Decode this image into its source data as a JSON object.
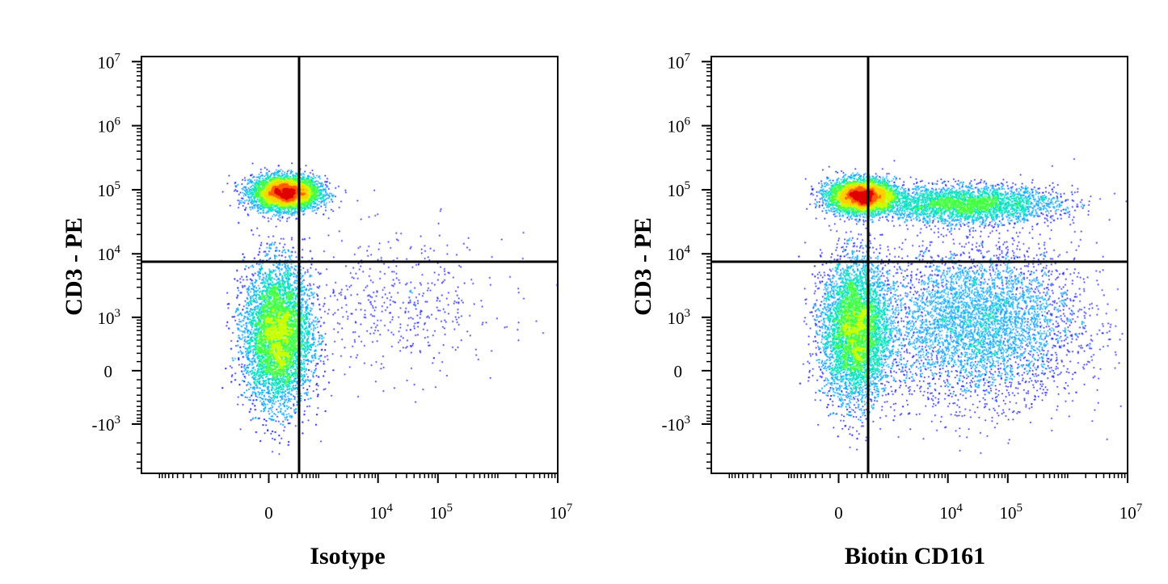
{
  "chart_data": [
    {
      "type": "scatter",
      "subtype": "flow-cytometry-density-dot-plot",
      "xlabel": "Isotype",
      "ylabel": "CD3 - PE",
      "x_scale": "biexponential",
      "y_scale": "biexponential",
      "x_ticks": [
        {
          "value": 0,
          "base": "0",
          "exp": ""
        },
        {
          "value": 10000,
          "base": "10",
          "exp": "4"
        },
        {
          "value": 100000,
          "base": "10",
          "exp": "5"
        },
        {
          "value": 10000000,
          "base": "10",
          "exp": "7"
        }
      ],
      "y_ticks": [
        {
          "value": -1000,
          "base": "-10",
          "exp": "3"
        },
        {
          "value": 0,
          "base": "0",
          "exp": ""
        },
        {
          "value": 1000,
          "base": "10",
          "exp": "3"
        },
        {
          "value": 10000,
          "base": "10",
          "exp": "4"
        },
        {
          "value": 100000,
          "base": "10",
          "exp": "5"
        },
        {
          "value": 1000000,
          "base": "10",
          "exp": "6"
        },
        {
          "value": 10000000,
          "base": "10",
          "exp": "7"
        }
      ],
      "quadrant_gate": {
        "x": 1500,
        "y": 7000
      },
      "populations": [
        {
          "name_visible": false,
          "cx": 200,
          "cy": 90000,
          "events": 5200,
          "shape": "compact"
        },
        {
          "name_visible": false,
          "cx": 100,
          "cy": 500,
          "events": 8000,
          "shape": "vertical-elongated"
        },
        {
          "name_visible": false,
          "cx": 20000,
          "cy": 1500,
          "events": 500,
          "shape": "sparse"
        }
      ],
      "density_colors": [
        "#0000ff",
        "#00a0ff",
        "#00e0c0",
        "#40ff40",
        "#c8ff00",
        "#ffd000",
        "#ff6000",
        "#e00000"
      ]
    },
    {
      "type": "scatter",
      "subtype": "flow-cytometry-density-dot-plot",
      "xlabel": "Biotin CD161",
      "ylabel": "CD3 - PE",
      "x_scale": "biexponential",
      "y_scale": "biexponential",
      "x_ticks": [
        {
          "value": 0,
          "base": "0",
          "exp": ""
        },
        {
          "value": 10000,
          "base": "10",
          "exp": "4"
        },
        {
          "value": 100000,
          "base": "10",
          "exp": "5"
        },
        {
          "value": 10000000,
          "base": "10",
          "exp": "7"
        }
      ],
      "y_ticks": [
        {
          "value": -1000,
          "base": "-10",
          "exp": "3"
        },
        {
          "value": 0,
          "base": "0",
          "exp": ""
        },
        {
          "value": 1000,
          "base": "10",
          "exp": "3"
        },
        {
          "value": 10000,
          "base": "10",
          "exp": "4"
        },
        {
          "value": 100000,
          "base": "10",
          "exp": "5"
        },
        {
          "value": 1000000,
          "base": "10",
          "exp": "6"
        },
        {
          "value": 10000000,
          "base": "10",
          "exp": "7"
        }
      ],
      "quadrant_gate": {
        "x": 1500,
        "y": 7000
      },
      "populations": [
        {
          "name_visible": false,
          "cx": 300,
          "cy": 80000,
          "events": 5000,
          "shape": "compact"
        },
        {
          "name_visible": false,
          "cx": 20000,
          "cy": 60000,
          "events": 3500,
          "shape": "horizontal-smear"
        },
        {
          "name_visible": false,
          "cx": 200,
          "cy": 600,
          "events": 6500,
          "shape": "vertical-elongated"
        },
        {
          "name_visible": false,
          "cx": 30000,
          "cy": 800,
          "events": 5000,
          "shape": "broad"
        }
      ],
      "density_colors": [
        "#0000ff",
        "#00a0ff",
        "#00e0c0",
        "#40ff40",
        "#c8ff00",
        "#ffd000",
        "#ff6000",
        "#e00000"
      ]
    }
  ]
}
